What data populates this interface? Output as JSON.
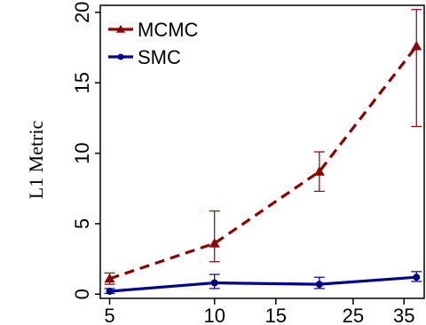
{
  "chart_data": {
    "type": "line",
    "title": "",
    "xlabel": "",
    "ylabel": "L1 Metric",
    "x_scale": "log",
    "xlim": [
      4.7,
      40
    ],
    "ylim": [
      -0.3,
      20.5
    ],
    "x_ticks": [
      5,
      10,
      15,
      25,
      35
    ],
    "x_tick_labels": [
      "5",
      "10",
      "15",
      "25",
      "35"
    ],
    "y_ticks": [
      0,
      5,
      10,
      15,
      20
    ],
    "y_tick_labels": [
      "0",
      "5",
      "10",
      "15",
      "20"
    ],
    "grid": false,
    "legend_position": "top-left",
    "x": [
      5,
      10,
      20,
      38
    ],
    "series": [
      {
        "name": "MCMC",
        "color": "#8b0000",
        "line_style": "dashed",
        "marker": "triangle",
        "values": [
          1.1,
          3.6,
          8.7,
          17.6
        ],
        "error_low": [
          0.7,
          2.3,
          7.3,
          11.9
        ],
        "error_high": [
          1.5,
          5.9,
          10.1,
          20.2
        ]
      },
      {
        "name": "SMC",
        "color": "#00008b",
        "line_style": "solid",
        "marker": "circle",
        "values": [
          0.2,
          0.8,
          0.7,
          1.2
        ],
        "error_low": [
          0.05,
          0.4,
          0.4,
          0.9
        ],
        "error_high": [
          0.4,
          1.4,
          1.2,
          1.6
        ]
      }
    ]
  }
}
